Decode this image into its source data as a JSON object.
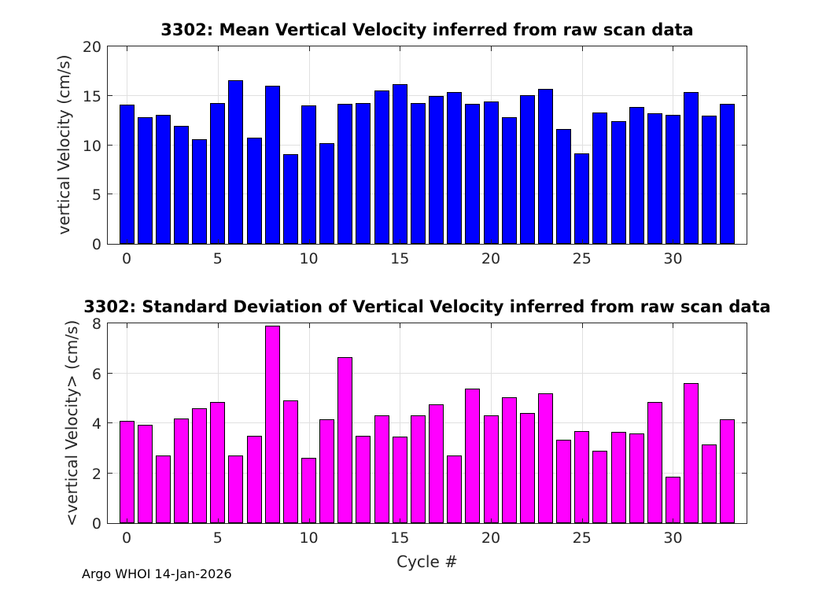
{
  "footer": {
    "text": "Argo WHOI 14-Jan-2026"
  },
  "colors": {
    "mean_bar_fill": "#0000FF",
    "std_bar_fill": "#FF00FF",
    "bar_edge": "#000000",
    "grid": "#E0E0E0",
    "axis": "#262626",
    "title_text": "#000000"
  },
  "chart_data": [
    {
      "type": "bar",
      "title": "3302: Mean Vertical Velocity inferred from raw scan data",
      "xlabel": "",
      "ylabel": "vertical Velocity (cm/s)",
      "bar_color": "#0000FF",
      "bar_edge_color": "#000000",
      "grid": true,
      "xlim": [
        -1.04,
        34.04
      ],
      "ylim": [
        0,
        20
      ],
      "xticks": [
        0,
        5,
        10,
        15,
        20,
        25,
        30
      ],
      "yticks": [
        0,
        5,
        10,
        15,
        20
      ],
      "x": [
        0,
        1,
        2,
        3,
        4,
        5,
        6,
        7,
        8,
        9,
        10,
        11,
        12,
        13,
        14,
        15,
        16,
        17,
        18,
        19,
        20,
        21,
        22,
        23,
        24,
        25,
        26,
        27,
        28,
        29,
        30,
        31,
        32,
        33
      ],
      "values": [
        14.1,
        12.8,
        13.1,
        11.95,
        10.6,
        14.3,
        16.6,
        10.75,
        16.0,
        9.1,
        14.05,
        10.2,
        14.2,
        14.25,
        15.5,
        16.2,
        14.3,
        15.0,
        15.35,
        14.2,
        14.4,
        12.8,
        15.1,
        15.7,
        11.65,
        9.15,
        13.3,
        12.4,
        13.85,
        13.25,
        13.05,
        15.4,
        13.0,
        14.15
      ]
    },
    {
      "type": "bar",
      "title": "3302: Standard Deviation of Vertical Velocity inferred from raw scan data",
      "xlabel": "Cycle #",
      "ylabel": "<vertical Velocity> (cm/s)",
      "bar_color": "#FF00FF",
      "bar_edge_color": "#000000",
      "grid": true,
      "xlim": [
        -1.04,
        34.04
      ],
      "ylim": [
        0,
        8
      ],
      "xticks": [
        0,
        5,
        10,
        15,
        20,
        25,
        30
      ],
      "yticks": [
        0,
        2,
        4,
        6,
        8
      ],
      "x": [
        0,
        1,
        2,
        3,
        4,
        5,
        6,
        7,
        8,
        9,
        10,
        11,
        12,
        13,
        14,
        15,
        16,
        17,
        18,
        19,
        20,
        21,
        22,
        23,
        24,
        25,
        26,
        27,
        28,
        29,
        30,
        31,
        32,
        33
      ],
      "values": [
        4.1,
        3.95,
        2.7,
        4.2,
        4.6,
        4.85,
        2.7,
        3.5,
        7.9,
        4.9,
        2.6,
        4.15,
        6.65,
        3.5,
        4.3,
        3.45,
        4.3,
        4.75,
        2.7,
        5.4,
        4.3,
        5.05,
        4.4,
        5.2,
        3.35,
        3.7,
        2.9,
        3.65,
        3.6,
        4.85,
        1.85,
        5.6,
        3.15,
        4.15
      ]
    }
  ]
}
